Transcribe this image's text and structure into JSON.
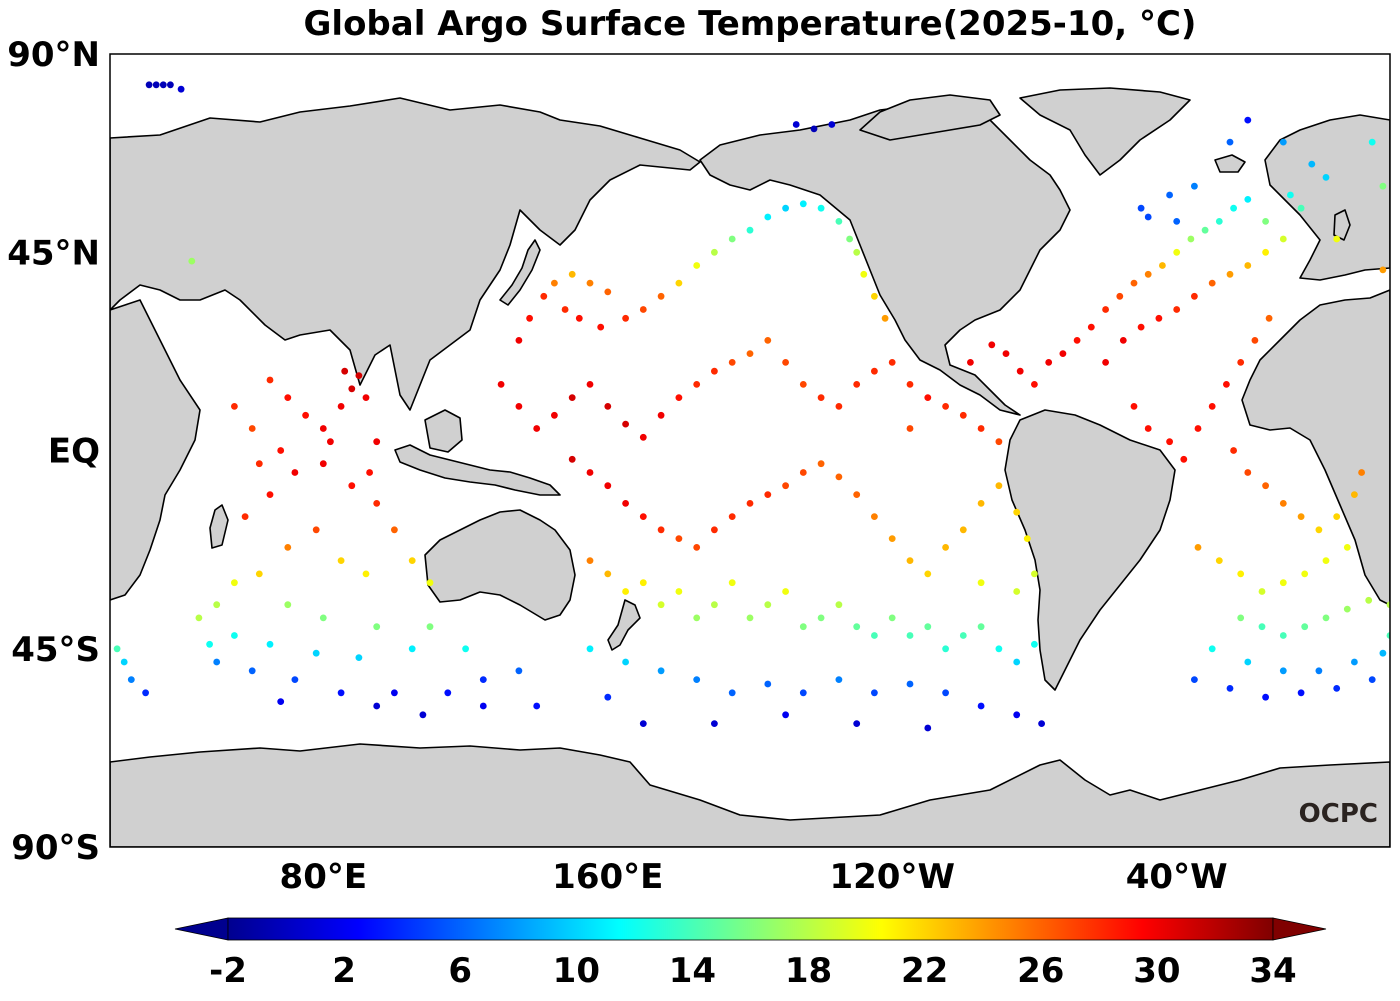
{
  "title": "Global Argo Surface Temperature(2025-10, °C)",
  "credit": "OCPC",
  "map": {
    "projection": "PlateCarree",
    "central_longitude": -160,
    "lon_range": [
      20,
      380
    ],
    "lat_range": [
      -90,
      90
    ],
    "lat_ticks": [
      {
        "lat": 90,
        "label": "90°N"
      },
      {
        "lat": 45,
        "label": "45°N"
      },
      {
        "lat": 0,
        "label": "EQ"
      },
      {
        "lat": -45,
        "label": "45°S"
      },
      {
        "lat": -90,
        "label": "90°S"
      }
    ],
    "lon_ticks": [
      {
        "lon": 80,
        "label": "80°E"
      },
      {
        "lon": 160,
        "label": "160°E"
      },
      {
        "lon": 240,
        "label": "120°W"
      },
      {
        "lon": 320,
        "label": "40°W"
      }
    ],
    "land_color": "#d0d0d0",
    "ocean_color": "#ffffff"
  },
  "colorbar": {
    "colormap": "jet",
    "vmin": -2,
    "vmax": 34,
    "extend": "both",
    "ticks": [
      "-2",
      "2",
      "6",
      "10",
      "14",
      "18",
      "22",
      "26",
      "30",
      "34"
    ]
  },
  "chart_data": {
    "type": "scatter",
    "title": "Global Argo Surface Temperature(2025-10, °C)",
    "xlabel": "",
    "ylabel": "",
    "variable": "sea surface temperature (°C)",
    "note": "Each point: lon (degrees east, 0-360), lat (degrees), temperature (°C) estimated from color",
    "points": [
      [
        50,
        -35,
        18
      ],
      [
        55,
        -30,
        20
      ],
      [
        62,
        -28,
        22
      ],
      [
        70,
        -22,
        25
      ],
      [
        58,
        -15,
        28
      ],
      [
        65,
        -10,
        29
      ],
      [
        72,
        -5,
        30
      ],
      [
        80,
        -3,
        30
      ],
      [
        88,
        -8,
        29
      ],
      [
        95,
        -12,
        28
      ],
      [
        100,
        -18,
        26
      ],
      [
        78,
        -18,
        27
      ],
      [
        85,
        -25,
        22
      ],
      [
        92,
        -28,
        21
      ],
      [
        105,
        -25,
        22
      ],
      [
        110,
        -30,
        20
      ],
      [
        70,
        -35,
        17
      ],
      [
        80,
        -38,
        16
      ],
      [
        95,
        -40,
        16
      ],
      [
        110,
        -40,
        16
      ],
      [
        55,
        -42,
        12
      ],
      [
        65,
        -44,
        11
      ],
      [
        78,
        -46,
        10
      ],
      [
        90,
        -47,
        10
      ],
      [
        105,
        -45,
        11
      ],
      [
        120,
        -45,
        12
      ],
      [
        50,
        -48,
        7
      ],
      [
        60,
        -50,
        6
      ],
      [
        72,
        -52,
        5
      ],
      [
        85,
        -55,
        3
      ],
      [
        100,
        -55,
        2
      ],
      [
        115,
        -55,
        3
      ],
      [
        125,
        -52,
        4
      ],
      [
        135,
        -50,
        6
      ],
      [
        68,
        -57,
        2
      ],
      [
        95,
        -58,
        1
      ],
      [
        80,
        5,
        30
      ],
      [
        85,
        10,
        30
      ],
      [
        88,
        14,
        31
      ],
      [
        90,
        17,
        31
      ],
      [
        86,
        18,
        31
      ],
      [
        92,
        12,
        30
      ],
      [
        70,
        12,
        29
      ],
      [
        65,
        16,
        28
      ],
      [
        75,
        8,
        29
      ],
      [
        82,
        2,
        30
      ],
      [
        60,
        5,
        27
      ],
      [
        55,
        10,
        28
      ],
      [
        95,
        2,
        30
      ],
      [
        93,
        -5,
        29
      ],
      [
        68,
        0,
        29
      ],
      [
        62,
        -3,
        28
      ],
      [
        135,
        25,
        30
      ],
      [
        138,
        30,
        29
      ],
      [
        142,
        35,
        28
      ],
      [
        145,
        38,
        25
      ],
      [
        150,
        40,
        23
      ],
      [
        155,
        38,
        25
      ],
      [
        160,
        36,
        26
      ],
      [
        148,
        32,
        28
      ],
      [
        152,
        30,
        29
      ],
      [
        158,
        28,
        29
      ],
      [
        165,
        30,
        28
      ],
      [
        170,
        32,
        27
      ],
      [
        175,
        35,
        26
      ],
      [
        180,
        38,
        22
      ],
      [
        185,
        42,
        20
      ],
      [
        190,
        45,
        18
      ],
      [
        195,
        48,
        16
      ],
      [
        200,
        50,
        13
      ],
      [
        205,
        53,
        11
      ],
      [
        210,
        55,
        10
      ],
      [
        215,
        56,
        11
      ],
      [
        220,
        55,
        12
      ],
      [
        225,
        52,
        14
      ],
      [
        228,
        48,
        16
      ],
      [
        230,
        45,
        18
      ],
      [
        232,
        40,
        20
      ],
      [
        235,
        35,
        22
      ],
      [
        238,
        30,
        24
      ],
      [
        130,
        15,
        30
      ],
      [
        135,
        10,
        30
      ],
      [
        140,
        5,
        30
      ],
      [
        145,
        8,
        30
      ],
      [
        150,
        12,
        31
      ],
      [
        155,
        15,
        30
      ],
      [
        160,
        10,
        31
      ],
      [
        165,
        6,
        31
      ],
      [
        170,
        3,
        30
      ],
      [
        175,
        8,
        30
      ],
      [
        180,
        12,
        29
      ],
      [
        185,
        15,
        28
      ],
      [
        190,
        18,
        28
      ],
      [
        195,
        20,
        27
      ],
      [
        200,
        22,
        26
      ],
      [
        205,
        25,
        26
      ],
      [
        210,
        20,
        27
      ],
      [
        215,
        15,
        27
      ],
      [
        220,
        12,
        28
      ],
      [
        225,
        10,
        28
      ],
      [
        230,
        15,
        28
      ],
      [
        235,
        18,
        28
      ],
      [
        240,
        20,
        28
      ],
      [
        245,
        15,
        28
      ],
      [
        250,
        12,
        29
      ],
      [
        255,
        10,
        28
      ],
      [
        260,
        8,
        28
      ],
      [
        265,
        5,
        28
      ],
      [
        270,
        2,
        27
      ],
      [
        245,
        5,
        27
      ],
      [
        150,
        -2,
        31
      ],
      [
        155,
        -5,
        30
      ],
      [
        160,
        -8,
        30
      ],
      [
        165,
        -12,
        30
      ],
      [
        170,
        -15,
        29
      ],
      [
        175,
        -18,
        28
      ],
      [
        180,
        -20,
        27
      ],
      [
        185,
        -22,
        27
      ],
      [
        190,
        -18,
        28
      ],
      [
        195,
        -15,
        28
      ],
      [
        200,
        -12,
        28
      ],
      [
        205,
        -10,
        28
      ],
      [
        210,
        -8,
        27
      ],
      [
        215,
        -5,
        27
      ],
      [
        220,
        -3,
        26
      ],
      [
        225,
        -6,
        26
      ],
      [
        230,
        -10,
        26
      ],
      [
        235,
        -15,
        25
      ],
      [
        240,
        -20,
        24
      ],
      [
        245,
        -25,
        23
      ],
      [
        250,
        -28,
        22
      ],
      [
        255,
        -22,
        23
      ],
      [
        260,
        -18,
        23
      ],
      [
        265,
        -12,
        23
      ],
      [
        270,
        -8,
        23
      ],
      [
        275,
        -14,
        22
      ],
      [
        278,
        -20,
        21
      ],
      [
        280,
        -28,
        19
      ],
      [
        275,
        -32,
        19
      ],
      [
        265,
        -30,
        20
      ],
      [
        155,
        -25,
        25
      ],
      [
        160,
        -28,
        23
      ],
      [
        165,
        -32,
        21
      ],
      [
        170,
        -30,
        21
      ],
      [
        175,
        -35,
        19
      ],
      [
        180,
        -32,
        20
      ],
      [
        185,
        -38,
        17
      ],
      [
        190,
        -35,
        18
      ],
      [
        195,
        -30,
        20
      ],
      [
        200,
        -38,
        17
      ],
      [
        205,
        -35,
        18
      ],
      [
        210,
        -32,
        20
      ],
      [
        215,
        -40,
        16
      ],
      [
        220,
        -38,
        16
      ],
      [
        225,
        -35,
        18
      ],
      [
        230,
        -40,
        15
      ],
      [
        235,
        -42,
        14
      ],
      [
        240,
        -38,
        16
      ],
      [
        245,
        -42,
        14
      ],
      [
        250,
        -40,
        15
      ],
      [
        255,
        -45,
        13
      ],
      [
        260,
        -42,
        14
      ],
      [
        265,
        -40,
        15
      ],
      [
        270,
        -45,
        12
      ],
      [
        275,
        -48,
        10
      ],
      [
        280,
        -44,
        12
      ],
      [
        155,
        -45,
        11
      ],
      [
        165,
        -48,
        10
      ],
      [
        175,
        -50,
        8
      ],
      [
        185,
        -52,
        7
      ],
      [
        195,
        -55,
        6
      ],
      [
        205,
        -53,
        6
      ],
      [
        215,
        -55,
        5
      ],
      [
        225,
        -52,
        7
      ],
      [
        235,
        -55,
        5
      ],
      [
        245,
        -53,
        6
      ],
      [
        255,
        -55,
        5
      ],
      [
        265,
        -58,
        3
      ],
      [
        275,
        -60,
        2
      ],
      [
        170,
        -62,
        1
      ],
      [
        190,
        -62,
        1
      ],
      [
        210,
        -60,
        2
      ],
      [
        230,
        -62,
        1
      ],
      [
        250,
        -63,
        1
      ],
      [
        282,
        -62,
        1
      ],
      [
        262,
        20,
        30
      ],
      [
        268,
        24,
        30
      ],
      [
        272,
        22,
        30
      ],
      [
        276,
        18,
        30
      ],
      [
        280,
        15,
        29
      ],
      [
        284,
        20,
        30
      ],
      [
        288,
        22,
        30
      ],
      [
        292,
        25,
        29
      ],
      [
        296,
        28,
        29
      ],
      [
        300,
        32,
        28
      ],
      [
        304,
        35,
        27
      ],
      [
        308,
        38,
        26
      ],
      [
        312,
        40,
        25
      ],
      [
        316,
        42,
        23
      ],
      [
        320,
        45,
        20
      ],
      [
        324,
        48,
        17
      ],
      [
        328,
        50,
        15
      ],
      [
        332,
        52,
        13
      ],
      [
        336,
        55,
        12
      ],
      [
        340,
        57,
        11
      ],
      [
        325,
        60,
        7
      ],
      [
        318,
        58,
        6
      ],
      [
        310,
        55,
        5
      ],
      [
        312,
        53,
        5
      ],
      [
        320,
        52,
        6
      ],
      [
        300,
        20,
        30
      ],
      [
        305,
        25,
        30
      ],
      [
        310,
        28,
        29
      ],
      [
        315,
        30,
        29
      ],
      [
        320,
        32,
        28
      ],
      [
        325,
        35,
        28
      ],
      [
        330,
        38,
        26
      ],
      [
        335,
        40,
        24
      ],
      [
        340,
        42,
        23
      ],
      [
        345,
        45,
        21
      ],
      [
        350,
        48,
        19
      ],
      [
        345,
        52,
        16
      ],
      [
        355,
        55,
        14
      ],
      [
        352,
        58,
        12
      ],
      [
        308,
        10,
        29
      ],
      [
        312,
        5,
        29
      ],
      [
        318,
        2,
        29
      ],
      [
        322,
        -2,
        29
      ],
      [
        326,
        5,
        29
      ],
      [
        330,
        10,
        29
      ],
      [
        334,
        15,
        29
      ],
      [
        338,
        20,
        28
      ],
      [
        342,
        25,
        27
      ],
      [
        346,
        30,
        26
      ],
      [
        336,
        0,
        28
      ],
      [
        340,
        -5,
        27
      ],
      [
        345,
        -8,
        26
      ],
      [
        350,
        -12,
        25
      ],
      [
        355,
        -15,
        24
      ],
      [
        360,
        -18,
        22
      ],
      [
        365,
        -15,
        22
      ],
      [
        370,
        -10,
        23
      ],
      [
        372,
        -5,
        25
      ],
      [
        368,
        -22,
        20
      ],
      [
        362,
        -25,
        20
      ],
      [
        356,
        -28,
        20
      ],
      [
        350,
        -30,
        20
      ],
      [
        344,
        -32,
        19
      ],
      [
        338,
        -28,
        21
      ],
      [
        332,
        -25,
        22
      ],
      [
        326,
        -22,
        24
      ],
      [
        338,
        -38,
        16
      ],
      [
        344,
        -40,
        14
      ],
      [
        350,
        -42,
        14
      ],
      [
        356,
        -40,
        15
      ],
      [
        362,
        -38,
        16
      ],
      [
        368,
        -36,
        17
      ],
      [
        374,
        -34,
        18
      ],
      [
        330,
        -45,
        12
      ],
      [
        340,
        -48,
        10
      ],
      [
        350,
        -50,
        8
      ],
      [
        360,
        -50,
        7
      ],
      [
        370,
        -48,
        8
      ],
      [
        378,
        -46,
        9
      ],
      [
        325,
        -52,
        5
      ],
      [
        335,
        -54,
        4
      ],
      [
        345,
        -56,
        3
      ],
      [
        355,
        -55,
        3
      ],
      [
        365,
        -54,
        4
      ],
      [
        375,
        -52,
        5
      ],
      [
        45,
        -38,
        18
      ],
      [
        48,
        -44,
        12
      ],
      [
        22,
        -45,
        14
      ],
      [
        24,
        -48,
        10
      ],
      [
        26,
        -52,
        7
      ],
      [
        30,
        -55,
        4
      ],
      [
        108,
        -60,
        1
      ],
      [
        125,
        -58,
        2
      ],
      [
        140,
        -58,
        3
      ],
      [
        160,
        -56,
        4
      ],
      [
        31,
        83,
        0
      ],
      [
        33,
        83,
        0
      ],
      [
        35,
        83,
        0
      ],
      [
        37,
        83,
        0
      ],
      [
        40,
        82,
        1
      ],
      [
        213,
        74,
        1
      ],
      [
        218,
        73,
        0
      ],
      [
        223,
        74,
        1
      ],
      [
        340,
        75,
        3
      ],
      [
        335,
        70,
        6
      ],
      [
        350,
        70,
        8
      ],
      [
        358,
        65,
        9
      ],
      [
        362,
        62,
        10
      ],
      [
        375,
        70,
        12
      ],
      [
        378,
        60,
        16
      ],
      [
        365,
        48,
        20
      ],
      [
        380,
        -35,
        18
      ],
      [
        380,
        -42,
        14
      ],
      [
        43,
        43,
        17
      ],
      [
        378,
        41,
        24
      ]
    ]
  }
}
